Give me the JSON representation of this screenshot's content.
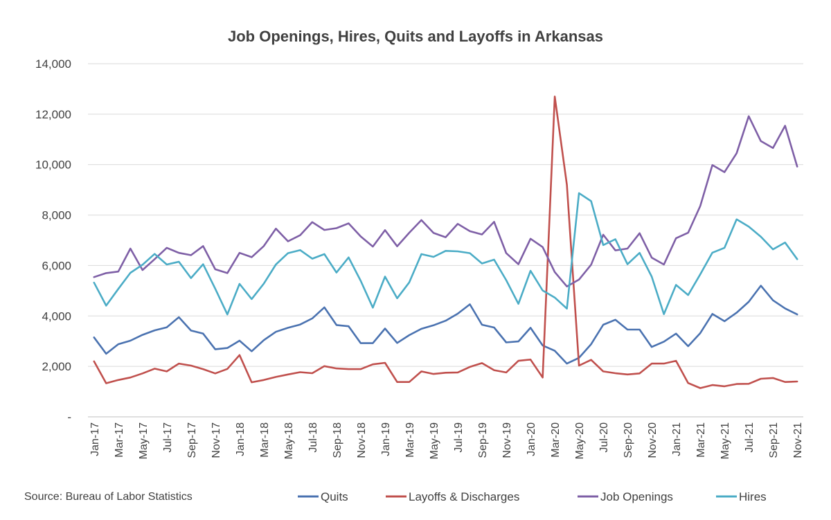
{
  "chart_data": {
    "type": "line",
    "title": "Job Openings, Hires, Quits and Layoffs in Arkansas",
    "source": "Source: Bureau of Labor Statistics",
    "ylim": [
      0,
      14000
    ],
    "yticks": [
      0,
      2000,
      4000,
      6000,
      8000,
      10000,
      12000,
      14000
    ],
    "ytick_labels": [
      "-",
      "2,000",
      "4,000",
      "6,000",
      "8,000",
      "10,000",
      "12,000",
      "14,000"
    ],
    "grid": true,
    "legend_position": "bottom",
    "x": [
      "Jan-17",
      "Feb-17",
      "Mar-17",
      "Apr-17",
      "May-17",
      "Jun-17",
      "Jul-17",
      "Aug-17",
      "Sep-17",
      "Oct-17",
      "Nov-17",
      "Dec-17",
      "Jan-18",
      "Feb-18",
      "Mar-18",
      "Apr-18",
      "May-18",
      "Jun-18",
      "Jul-18",
      "Aug-18",
      "Sep-18",
      "Oct-18",
      "Nov-18",
      "Dec-18",
      "Jan-19",
      "Feb-19",
      "Mar-19",
      "Apr-19",
      "May-19",
      "Jun-19",
      "Jul-19",
      "Aug-19",
      "Sep-19",
      "Oct-19",
      "Nov-19",
      "Dec-19",
      "Jan-20",
      "Feb-20",
      "Mar-20",
      "Apr-20",
      "May-20",
      "Jun-20",
      "Jul-20",
      "Aug-20",
      "Sep-20",
      "Oct-20",
      "Nov-20",
      "Dec-20",
      "Jan-21",
      "Feb-21",
      "Mar-21",
      "Apr-21",
      "May-21",
      "Jun-21",
      "Jul-21",
      "Aug-21",
      "Sep-21",
      "Oct-21",
      "Nov-21"
    ],
    "xtick_labels": [
      "Jan-17",
      "Mar-17",
      "May-17",
      "Jul-17",
      "Sep-17",
      "Nov-17",
      "Jan-18",
      "Mar-18",
      "May-18",
      "Jul-18",
      "Sep-18",
      "Nov-18",
      "Jan-19",
      "Mar-19",
      "May-19",
      "Jul-19",
      "Sep-19",
      "Nov-19",
      "Jan-20",
      "Mar-20",
      "May-20",
      "Jul-20",
      "Sep-20",
      "Nov-20",
      "Jan-21",
      "Mar-21",
      "May-21",
      "Jul-21",
      "Sep-21",
      "Nov-21"
    ],
    "series": [
      {
        "name": "Quits",
        "color": "#4a72b0",
        "values": [
          3150,
          2500,
          2880,
          3020,
          3250,
          3430,
          3550,
          3950,
          3420,
          3300,
          2680,
          2730,
          3020,
          2600,
          3040,
          3370,
          3530,
          3660,
          3900,
          4340,
          3640,
          3590,
          2920,
          2920,
          3500,
          2930,
          3240,
          3490,
          3630,
          3810,
          4090,
          4460,
          3650,
          3540,
          2950,
          2990,
          3530,
          2830,
          2620,
          2110,
          2340,
          2880,
          3650,
          3850,
          3460,
          3460,
          2770,
          2980,
          3300,
          2800,
          3320,
          4080,
          3790,
          4130,
          4560,
          5200,
          4620,
          4300,
          4060
        ]
      },
      {
        "name": "Layoffs & Discharges",
        "color": "#c0504d",
        "values": [
          2200,
          1330,
          1460,
          1560,
          1720,
          1910,
          1800,
          2110,
          2030,
          1890,
          1720,
          1900,
          2450,
          1370,
          1460,
          1580,
          1680,
          1770,
          1730,
          2010,
          1920,
          1890,
          1890,
          2080,
          2140,
          1380,
          1380,
          1800,
          1700,
          1750,
          1760,
          1980,
          2130,
          1850,
          1760,
          2220,
          2270,
          1560,
          12700,
          9200,
          2030,
          2260,
          1800,
          1730,
          1680,
          1720,
          2110,
          2110,
          2220,
          1340,
          1140,
          1260,
          1210,
          1300,
          1310,
          1510,
          1540,
          1380,
          1400
        ]
      },
      {
        "name": "Job Openings",
        "color": "#7e5fa6",
        "values": [
          5540,
          5700,
          5760,
          6670,
          5820,
          6250,
          6700,
          6500,
          6410,
          6770,
          5850,
          5700,
          6500,
          6330,
          6770,
          7460,
          6960,
          7200,
          7720,
          7410,
          7480,
          7670,
          7150,
          6750,
          7400,
          6760,
          7300,
          7800,
          7290,
          7120,
          7650,
          7360,
          7230,
          7730,
          6490,
          6050,
          7060,
          6730,
          5740,
          5170,
          5440,
          6030,
          7220,
          6600,
          6670,
          7280,
          6310,
          6040,
          7080,
          7300,
          8360,
          9980,
          9700,
          10450,
          11920,
          10930,
          10660,
          11540,
          9920
        ]
      },
      {
        "name": "Hires",
        "color": "#4bacc6",
        "values": [
          5320,
          4410,
          5070,
          5710,
          6030,
          6460,
          6040,
          6150,
          5500,
          6050,
          5080,
          4060,
          5270,
          4670,
          5280,
          6040,
          6490,
          6610,
          6270,
          6450,
          5720,
          6320,
          5390,
          4330,
          5560,
          4700,
          5330,
          6450,
          6340,
          6580,
          6560,
          6490,
          6080,
          6230,
          5420,
          4480,
          5790,
          5010,
          4730,
          4290,
          8870,
          8550,
          6810,
          7040,
          6050,
          6500,
          5560,
          4070,
          5230,
          4830,
          5650,
          6510,
          6700,
          7830,
          7540,
          7140,
          6640,
          6910,
          6250
        ]
      }
    ]
  }
}
